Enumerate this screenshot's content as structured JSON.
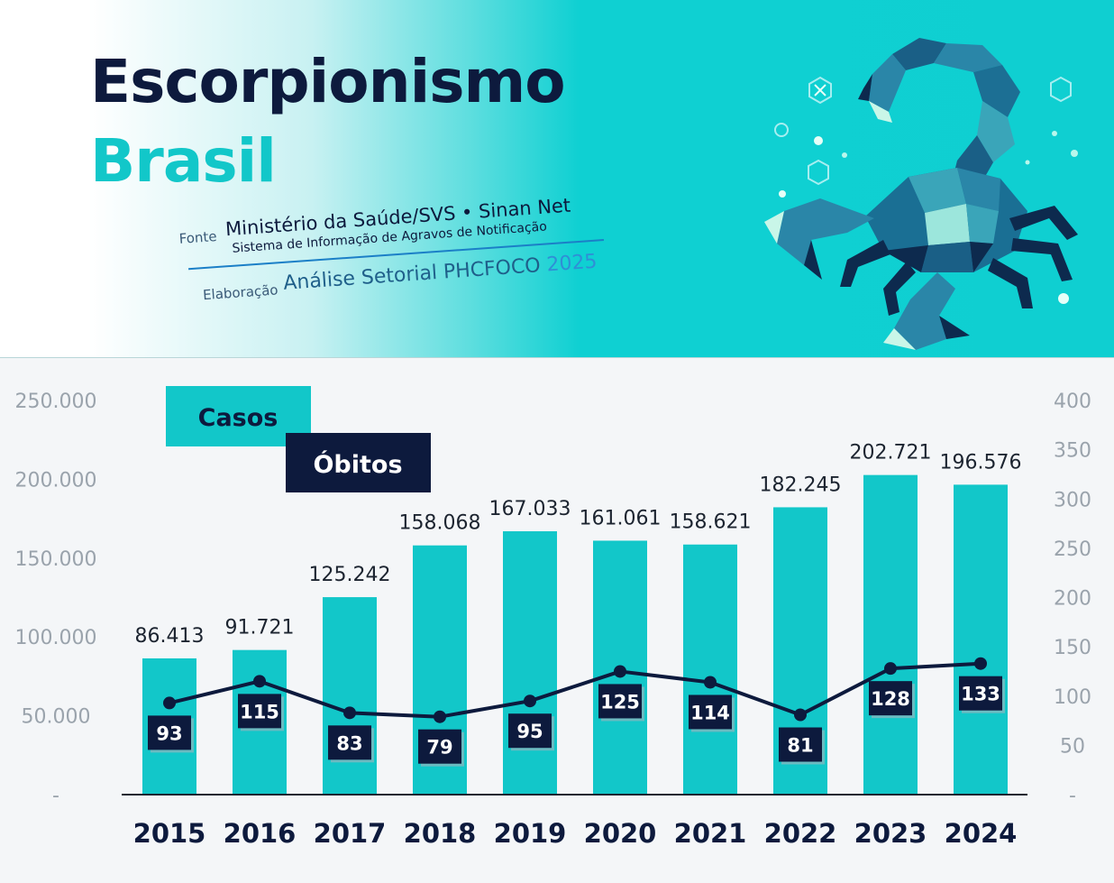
{
  "header": {
    "title_line1": "Escorpionismo",
    "title_line2": "Brasil",
    "source_label": "Fonte",
    "source_main": "Ministério da Saúde/SVS • Sinan Net",
    "source_sub": "Sistema de Informação de Agravos de Notificação",
    "credit_label": "Elaboração",
    "credit_main": "Análise Setorial PHCFOCO",
    "credit_year": "2025"
  },
  "chart_data": {
    "type": "bar",
    "categories": [
      "2015",
      "2016",
      "2017",
      "2018",
      "2019",
      "2020",
      "2021",
      "2022",
      "2023",
      "2024"
    ],
    "series": [
      {
        "name": "Casos",
        "type": "bar",
        "axis": "left",
        "values": [
          86413,
          91721,
          125242,
          158068,
          167033,
          161061,
          158621,
          182245,
          202721,
          196576
        ],
        "labels": [
          "86.413",
          "91.721",
          "125.242",
          "158.068",
          "167.033",
          "161.061",
          "158.621",
          "182.245",
          "202.721",
          "196.576"
        ],
        "color": "#12c7c9"
      },
      {
        "name": "Óbitos",
        "type": "line",
        "axis": "right",
        "values": [
          93,
          115,
          83,
          79,
          95,
          125,
          114,
          81,
          128,
          133
        ],
        "labels": [
          "93",
          "115",
          "83",
          "79",
          "95",
          "125",
          "114",
          "81",
          "128",
          "133"
        ],
        "color": "#0d1a3d"
      }
    ],
    "y_left": {
      "range": [
        0,
        250000
      ],
      "ticks": [
        "250.000",
        "200.000",
        "150.000",
        "100.000",
        "50.000",
        "-"
      ],
      "tick_values": [
        250000,
        200000,
        150000,
        100000,
        50000,
        0
      ]
    },
    "y_right": {
      "range": [
        0,
        400
      ],
      "ticks": [
        "400",
        "350",
        "300",
        "250",
        "200",
        "150",
        "100",
        "50",
        "-"
      ],
      "tick_values": [
        400,
        350,
        300,
        250,
        200,
        150,
        100,
        50,
        0
      ]
    },
    "grid": false,
    "legend": "top-left"
  },
  "colors": {
    "teal": "#12c7c9",
    "navy": "#0d1a3d"
  },
  "icons": [
    "scorpion-illustration",
    "close-x-icon",
    "hexagon-icon"
  ]
}
